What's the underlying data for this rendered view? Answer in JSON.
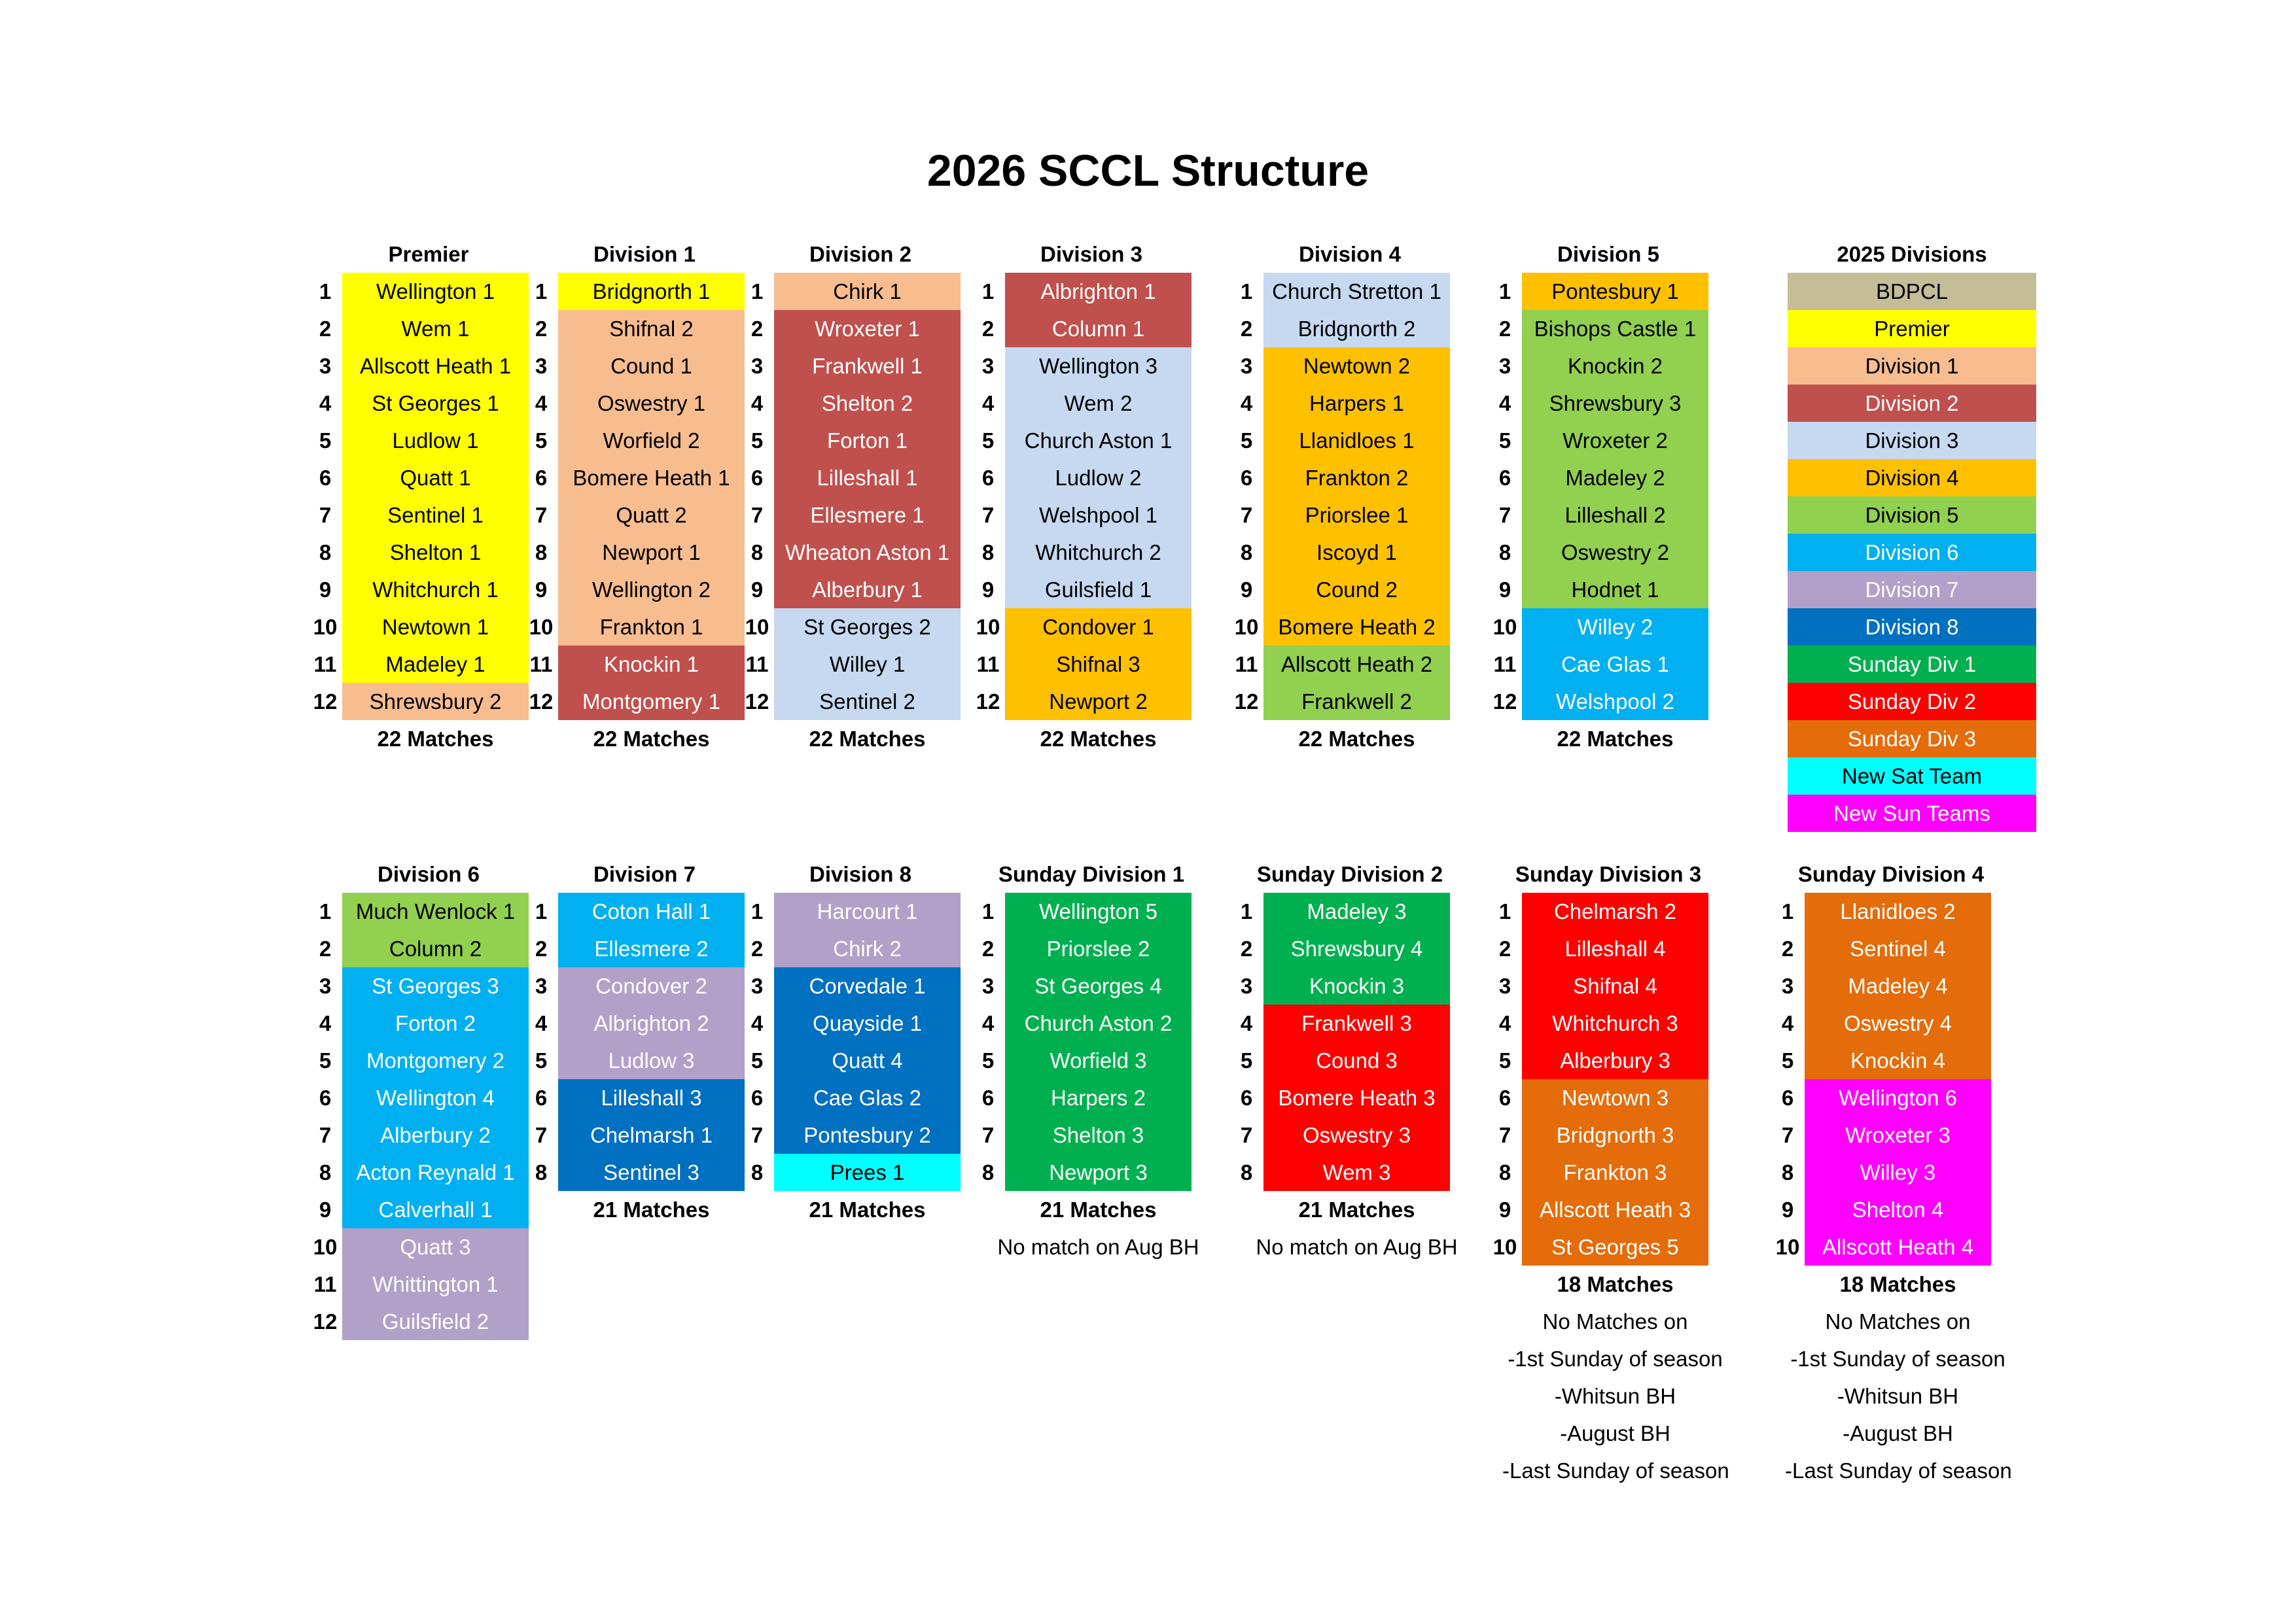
{
  "title": "2026 SCCL Structure",
  "colors": {
    "bdpcl": "#C4BD97",
    "premier": "#FFFF00",
    "division_1": "#F8BD8F",
    "division_2": "#C0504D",
    "division_3": "#C6D9F0",
    "division_4": "#FFC000",
    "division_5": "#92D050",
    "division_6": "#00B0F0",
    "division_7": "#B1A0C7",
    "division_8": "#0070C0",
    "sunday_div_1": "#00B050",
    "sunday_div_2": "#FF0000",
    "sunday_div_3": "#E46C0A",
    "new_sat_team": "#00FFFF",
    "new_sun_teams": "#FF00FF"
  },
  "divisions_top": [
    {
      "name": "Premier",
      "teams": [
        {
          "pos": "1",
          "name": "Wellington 1",
          "from": "premier"
        },
        {
          "pos": "2",
          "name": "Wem 1",
          "from": "premier"
        },
        {
          "pos": "3",
          "name": "Allscott Heath 1",
          "from": "premier"
        },
        {
          "pos": "4",
          "name": "St Georges 1",
          "from": "premier"
        },
        {
          "pos": "5",
          "name": "Ludlow 1",
          "from": "premier"
        },
        {
          "pos": "6",
          "name": "Quatt 1",
          "from": "premier"
        },
        {
          "pos": "7",
          "name": "Sentinel 1",
          "from": "premier"
        },
        {
          "pos": "8",
          "name": "Shelton 1",
          "from": "premier"
        },
        {
          "pos": "9",
          "name": "Whitchurch 1",
          "from": "premier"
        },
        {
          "pos": "10",
          "name": "Newtown 1",
          "from": "premier"
        },
        {
          "pos": "11",
          "name": "Madeley 1",
          "from": "premier"
        },
        {
          "pos": "12",
          "name": "Shrewsbury 2",
          "from": "division_1"
        }
      ],
      "notes": [
        {
          "text": "22 Matches",
          "bold": true
        }
      ]
    },
    {
      "name": "Division 1",
      "teams": [
        {
          "pos": "1",
          "name": "Bridgnorth 1",
          "from": "premier"
        },
        {
          "pos": "2",
          "name": "Shifnal 2",
          "from": "division_1"
        },
        {
          "pos": "3",
          "name": "Cound 1",
          "from": "division_1"
        },
        {
          "pos": "4",
          "name": "Oswestry 1",
          "from": "division_1"
        },
        {
          "pos": "5",
          "name": "Worfield 2",
          "from": "division_1"
        },
        {
          "pos": "6",
          "name": "Bomere Heath 1",
          "from": "division_1"
        },
        {
          "pos": "7",
          "name": "Quatt 2",
          "from": "division_1"
        },
        {
          "pos": "8",
          "name": "Newport 1",
          "from": "division_1"
        },
        {
          "pos": "9",
          "name": "Wellington 2",
          "from": "division_1"
        },
        {
          "pos": "10",
          "name": "Frankton 1",
          "from": "division_1"
        },
        {
          "pos": "11",
          "name": "Knockin 1",
          "from": "division_2"
        },
        {
          "pos": "12",
          "name": "Montgomery 1",
          "from": "division_2"
        }
      ],
      "notes": [
        {
          "text": "22 Matches",
          "bold": true
        }
      ]
    },
    {
      "name": "Division 2",
      "teams": [
        {
          "pos": "1",
          "name": "Chirk 1",
          "from": "division_1"
        },
        {
          "pos": "2",
          "name": "Wroxeter 1",
          "from": "division_2"
        },
        {
          "pos": "3",
          "name": "Frankwell 1",
          "from": "division_2"
        },
        {
          "pos": "4",
          "name": "Shelton 2",
          "from": "division_2"
        },
        {
          "pos": "5",
          "name": "Forton 1",
          "from": "division_2"
        },
        {
          "pos": "6",
          "name": "Lilleshall 1",
          "from": "division_2"
        },
        {
          "pos": "7",
          "name": "Ellesmere 1",
          "from": "division_2"
        },
        {
          "pos": "8",
          "name": "Wheaton Aston 1",
          "from": "division_2"
        },
        {
          "pos": "9",
          "name": "Alberbury 1",
          "from": "division_2"
        },
        {
          "pos": "10",
          "name": "St Georges 2",
          "from": "division_3"
        },
        {
          "pos": "11",
          "name": "Willey 1",
          "from": "division_3"
        },
        {
          "pos": "12",
          "name": "Sentinel 2",
          "from": "division_3"
        }
      ],
      "notes": [
        {
          "text": "22 Matches",
          "bold": true
        }
      ]
    },
    {
      "name": "Division 3",
      "teams": [
        {
          "pos": "1",
          "name": "Albrighton 1",
          "from": "division_2"
        },
        {
          "pos": "2",
          "name": "Column 1",
          "from": "division_2"
        },
        {
          "pos": "3",
          "name": "Wellington 3",
          "from": "division_3"
        },
        {
          "pos": "4",
          "name": "Wem 2",
          "from": "division_3"
        },
        {
          "pos": "5",
          "name": "Church Aston 1",
          "from": "division_3"
        },
        {
          "pos": "6",
          "name": "Ludlow 2",
          "from": "division_3"
        },
        {
          "pos": "7",
          "name": "Welshpool 1",
          "from": "division_3"
        },
        {
          "pos": "8",
          "name": "Whitchurch 2",
          "from": "division_3"
        },
        {
          "pos": "9",
          "name": "Guilsfield 1",
          "from": "division_3"
        },
        {
          "pos": "10",
          "name": "Condover 1",
          "from": "division_4"
        },
        {
          "pos": "11",
          "name": "Shifnal 3",
          "from": "division_4"
        },
        {
          "pos": "12",
          "name": "Newport 2",
          "from": "division_4"
        }
      ],
      "notes": [
        {
          "text": "22 Matches",
          "bold": true
        }
      ]
    },
    {
      "name": "Division 4",
      "teams": [
        {
          "pos": "1",
          "name": "Church Stretton 1",
          "from": "division_3"
        },
        {
          "pos": "2",
          "name": "Bridgnorth 2",
          "from": "division_3"
        },
        {
          "pos": "3",
          "name": "Newtown 2",
          "from": "division_4"
        },
        {
          "pos": "4",
          "name": "Harpers 1",
          "from": "division_4"
        },
        {
          "pos": "5",
          "name": "Llanidloes 1",
          "from": "division_4"
        },
        {
          "pos": "6",
          "name": "Frankton 2",
          "from": "division_4"
        },
        {
          "pos": "7",
          "name": "Priorslee 1",
          "from": "division_4"
        },
        {
          "pos": "8",
          "name": "Iscoyd 1",
          "from": "division_4"
        },
        {
          "pos": "9",
          "name": "Cound 2",
          "from": "division_4"
        },
        {
          "pos": "10",
          "name": "Bomere Heath 2",
          "from": "division_4"
        },
        {
          "pos": "11",
          "name": "Allscott Heath 2",
          "from": "division_5"
        },
        {
          "pos": "12",
          "name": "Frankwell 2",
          "from": "division_5"
        }
      ],
      "notes": [
        {
          "text": "22 Matches",
          "bold": true
        }
      ]
    },
    {
      "name": "Division 5",
      "teams": [
        {
          "pos": "1",
          "name": "Pontesbury 1",
          "from": "division_4"
        },
        {
          "pos": "2",
          "name": "Bishops Castle 1",
          "from": "division_5"
        },
        {
          "pos": "3",
          "name": "Knockin 2",
          "from": "division_5"
        },
        {
          "pos": "4",
          "name": "Shrewsbury 3",
          "from": "division_5"
        },
        {
          "pos": "5",
          "name": "Wroxeter 2",
          "from": "division_5"
        },
        {
          "pos": "6",
          "name": "Madeley 2",
          "from": "division_5"
        },
        {
          "pos": "7",
          "name": "Lilleshall 2",
          "from": "division_5"
        },
        {
          "pos": "8",
          "name": "Oswestry 2",
          "from": "division_5"
        },
        {
          "pos": "9",
          "name": "Hodnet 1",
          "from": "division_5"
        },
        {
          "pos": "10",
          "name": "Willey 2",
          "from": "division_6"
        },
        {
          "pos": "11",
          "name": "Cae Glas 1",
          "from": "division_6"
        },
        {
          "pos": "12",
          "name": "Welshpool 2",
          "from": "division_6"
        }
      ],
      "notes": [
        {
          "text": "22 Matches",
          "bold": true
        }
      ]
    }
  ],
  "divisions_bottom": [
    {
      "name": "Division 6",
      "teams": [
        {
          "pos": "1",
          "name": "Much Wenlock 1",
          "from": "division_5"
        },
        {
          "pos": "2",
          "name": "Column 2",
          "from": "division_5"
        },
        {
          "pos": "3",
          "name": "St Georges 3",
          "from": "division_6"
        },
        {
          "pos": "4",
          "name": "Forton 2",
          "from": "division_6"
        },
        {
          "pos": "5",
          "name": "Montgomery 2",
          "from": "division_6"
        },
        {
          "pos": "6",
          "name": "Wellington 4",
          "from": "division_6"
        },
        {
          "pos": "7",
          "name": "Alberbury 2",
          "from": "division_6"
        },
        {
          "pos": "8",
          "name": "Acton Reynald 1",
          "from": "division_6"
        },
        {
          "pos": "9",
          "name": "Calverhall 1",
          "from": "division_6"
        },
        {
          "pos": "10",
          "name": "Quatt 3",
          "from": "division_7"
        },
        {
          "pos": "11",
          "name": "Whittington 1",
          "from": "division_7"
        },
        {
          "pos": "12",
          "name": "Guilsfield 2",
          "from": "division_7"
        }
      ],
      "notes": []
    },
    {
      "name": "Division 7",
      "teams": [
        {
          "pos": "1",
          "name": "Coton Hall 1",
          "from": "division_6"
        },
        {
          "pos": "2",
          "name": "Ellesmere 2",
          "from": "division_6"
        },
        {
          "pos": "3",
          "name": "Condover 2",
          "from": "division_7"
        },
        {
          "pos": "4",
          "name": "Albrighton 2",
          "from": "division_7"
        },
        {
          "pos": "5",
          "name": "Ludlow 3",
          "from": "division_7"
        },
        {
          "pos": "6",
          "name": "Lilleshall 3",
          "from": "division_8"
        },
        {
          "pos": "7",
          "name": "Chelmarsh 1",
          "from": "division_8"
        },
        {
          "pos": "8",
          "name": "Sentinel 3",
          "from": "division_8"
        }
      ],
      "notes": [
        {
          "text": "21 Matches",
          "bold": true
        }
      ]
    },
    {
      "name": "Division 8",
      "teams": [
        {
          "pos": "1",
          "name": "Harcourt 1",
          "from": "division_7"
        },
        {
          "pos": "2",
          "name": "Chirk 2",
          "from": "division_7"
        },
        {
          "pos": "3",
          "name": "Corvedale 1",
          "from": "division_8"
        },
        {
          "pos": "4",
          "name": "Quayside 1",
          "from": "division_8"
        },
        {
          "pos": "5",
          "name": "Quatt 4",
          "from": "division_8"
        },
        {
          "pos": "6",
          "name": "Cae Glas 2",
          "from": "division_8"
        },
        {
          "pos": "7",
          "name": "Pontesbury 2",
          "from": "division_8"
        },
        {
          "pos": "8",
          "name": "Prees 1",
          "from": "new_sat_team"
        }
      ],
      "notes": [
        {
          "text": "21 Matches",
          "bold": true
        }
      ]
    },
    {
      "name": "Sunday Division 1",
      "teams": [
        {
          "pos": "1",
          "name": "Wellington 5",
          "from": "sunday_div_1"
        },
        {
          "pos": "2",
          "name": "Priorslee 2",
          "from": "sunday_div_1"
        },
        {
          "pos": "3",
          "name": "St Georges 4",
          "from": "sunday_div_1"
        },
        {
          "pos": "4",
          "name": "Church Aston 2",
          "from": "sunday_div_1"
        },
        {
          "pos": "5",
          "name": "Worfield 3",
          "from": "sunday_div_1"
        },
        {
          "pos": "6",
          "name": "Harpers 2",
          "from": "sunday_div_1"
        },
        {
          "pos": "7",
          "name": "Shelton 3",
          "from": "sunday_div_1"
        },
        {
          "pos": "8",
          "name": "Newport 3",
          "from": "sunday_div_1"
        }
      ],
      "notes": [
        {
          "text": "21 Matches",
          "bold": true
        },
        {
          "text": "No match on Aug BH",
          "bold": false
        }
      ]
    },
    {
      "name": "Sunday Division 2",
      "teams": [
        {
          "pos": "1",
          "name": "Madeley 3",
          "from": "sunday_div_1"
        },
        {
          "pos": "2",
          "name": "Shrewsbury 4",
          "from": "sunday_div_1"
        },
        {
          "pos": "3",
          "name": "Knockin 3",
          "from": "sunday_div_1"
        },
        {
          "pos": "4",
          "name": "Frankwell 3",
          "from": "sunday_div_2"
        },
        {
          "pos": "5",
          "name": "Cound 3",
          "from": "sunday_div_2"
        },
        {
          "pos": "6",
          "name": "Bomere Heath 3",
          "from": "sunday_div_2"
        },
        {
          "pos": "7",
          "name": "Oswestry 3",
          "from": "sunday_div_2"
        },
        {
          "pos": "8",
          "name": "Wem 3",
          "from": "sunday_div_2"
        }
      ],
      "notes": [
        {
          "text": "21 Matches",
          "bold": true
        },
        {
          "text": "No match on Aug BH",
          "bold": false
        }
      ]
    },
    {
      "name": "Sunday Division 3",
      "teams": [
        {
          "pos": "1",
          "name": "Chelmarsh 2",
          "from": "sunday_div_2"
        },
        {
          "pos": "2",
          "name": "Lilleshall 4",
          "from": "sunday_div_2"
        },
        {
          "pos": "3",
          "name": "Shifnal 4",
          "from": "sunday_div_2"
        },
        {
          "pos": "4",
          "name": "Whitchurch 3",
          "from": "sunday_div_2"
        },
        {
          "pos": "5",
          "name": "Alberbury 3",
          "from": "sunday_div_2"
        },
        {
          "pos": "6",
          "name": "Newtown 3",
          "from": "sunday_div_3"
        },
        {
          "pos": "7",
          "name": "Bridgnorth 3",
          "from": "sunday_div_3"
        },
        {
          "pos": "8",
          "name": "Frankton 3",
          "from": "sunday_div_3"
        },
        {
          "pos": "9",
          "name": "Allscott Heath 3",
          "from": "sunday_div_3"
        },
        {
          "pos": "10",
          "name": "St Georges 5",
          "from": "sunday_div_3"
        }
      ],
      "notes": [
        {
          "text": "18 Matches",
          "bold": true
        },
        {
          "text": "No Matches on",
          "bold": false
        },
        {
          "text": "-1st Sunday of season",
          "bold": false
        },
        {
          "text": "-Whitsun BH",
          "bold": false
        },
        {
          "text": "-August BH",
          "bold": false
        },
        {
          "text": "-Last Sunday of season",
          "bold": false
        }
      ]
    },
    {
      "name": "Sunday Division 4",
      "teams": [
        {
          "pos": "1",
          "name": "Llanidloes 2",
          "from": "sunday_div_3"
        },
        {
          "pos": "2",
          "name": "Sentinel 4",
          "from": "sunday_div_3"
        },
        {
          "pos": "3",
          "name": "Madeley 4",
          "from": "sunday_div_3"
        },
        {
          "pos": "4",
          "name": "Oswestry 4",
          "from": "sunday_div_3"
        },
        {
          "pos": "5",
          "name": "Knockin 4",
          "from": "sunday_div_3"
        },
        {
          "pos": "6",
          "name": "Wellington 6",
          "from": "new_sun_teams"
        },
        {
          "pos": "7",
          "name": "Wroxeter 3",
          "from": "new_sun_teams"
        },
        {
          "pos": "8",
          "name": "Willey 3",
          "from": "new_sun_teams"
        },
        {
          "pos": "9",
          "name": "Shelton 4",
          "from": "new_sun_teams"
        },
        {
          "pos": "10",
          "name": "Allscott Heath 4",
          "from": "new_sun_teams"
        }
      ],
      "notes": [
        {
          "text": "18 Matches",
          "bold": true
        },
        {
          "text": "No Matches on",
          "bold": false
        },
        {
          "text": "-1st Sunday of season",
          "bold": false
        },
        {
          "text": "-Whitsun BH",
          "bold": false
        },
        {
          "text": "-August BH",
          "bold": false
        },
        {
          "text": "-Last Sunday of season",
          "bold": false
        }
      ]
    }
  ],
  "legend": {
    "title": "2025 Divisions",
    "items": [
      {
        "label": "BDPCL",
        "key": "bdpcl"
      },
      {
        "label": "Premier",
        "key": "premier"
      },
      {
        "label": "Division 1",
        "key": "division_1"
      },
      {
        "label": "Division 2",
        "key": "division_2"
      },
      {
        "label": "Division 3",
        "key": "division_3"
      },
      {
        "label": "Division 4",
        "key": "division_4"
      },
      {
        "label": "Division 5",
        "key": "division_5"
      },
      {
        "label": "Division 6",
        "key": "division_6"
      },
      {
        "label": "Division 7",
        "key": "division_7"
      },
      {
        "label": "Division 8",
        "key": "division_8"
      },
      {
        "label": "Sunday Div 1",
        "key": "sunday_div_1"
      },
      {
        "label": "Sunday Div 2",
        "key": "sunday_div_2"
      },
      {
        "label": "Sunday Div 3",
        "key": "sunday_div_3"
      },
      {
        "label": "New Sat Team",
        "key": "new_sat_team"
      },
      {
        "label": "New Sun Teams",
        "key": "new_sun_teams"
      }
    ]
  }
}
